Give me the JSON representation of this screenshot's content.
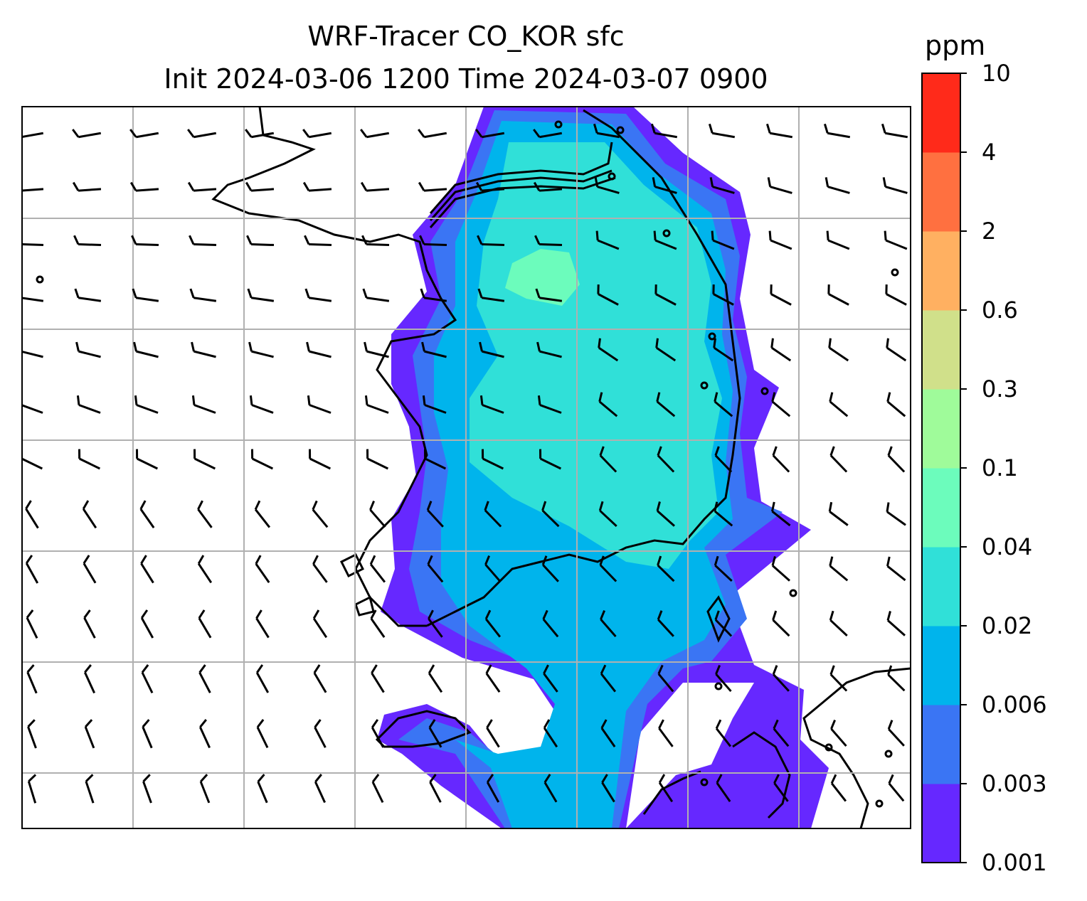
{
  "title": {
    "line1": "WRF-Tracer CO_KOR sfc",
    "line2": "Init 2024-03-06 1200 Time 2024-03-07 0900"
  },
  "colorbar": {
    "unit": "ppm",
    "levels": [
      "0.001",
      "0.003",
      "0.006",
      "0.02",
      "0.04",
      "0.1",
      "0.3",
      "0.6",
      "2",
      "4",
      "10"
    ],
    "colors": [
      "#6628ff",
      "#3a75f4",
      "#00b4ec",
      "#30e0d8",
      "#6cfcbc",
      "#9ffb9a",
      "#d0e08a",
      "#ffb061",
      "#ff7040",
      "#ff2a1a"
    ]
  },
  "map": {
    "field": "CO tracer concentration with surface wind barbs",
    "grid": true
  }
}
